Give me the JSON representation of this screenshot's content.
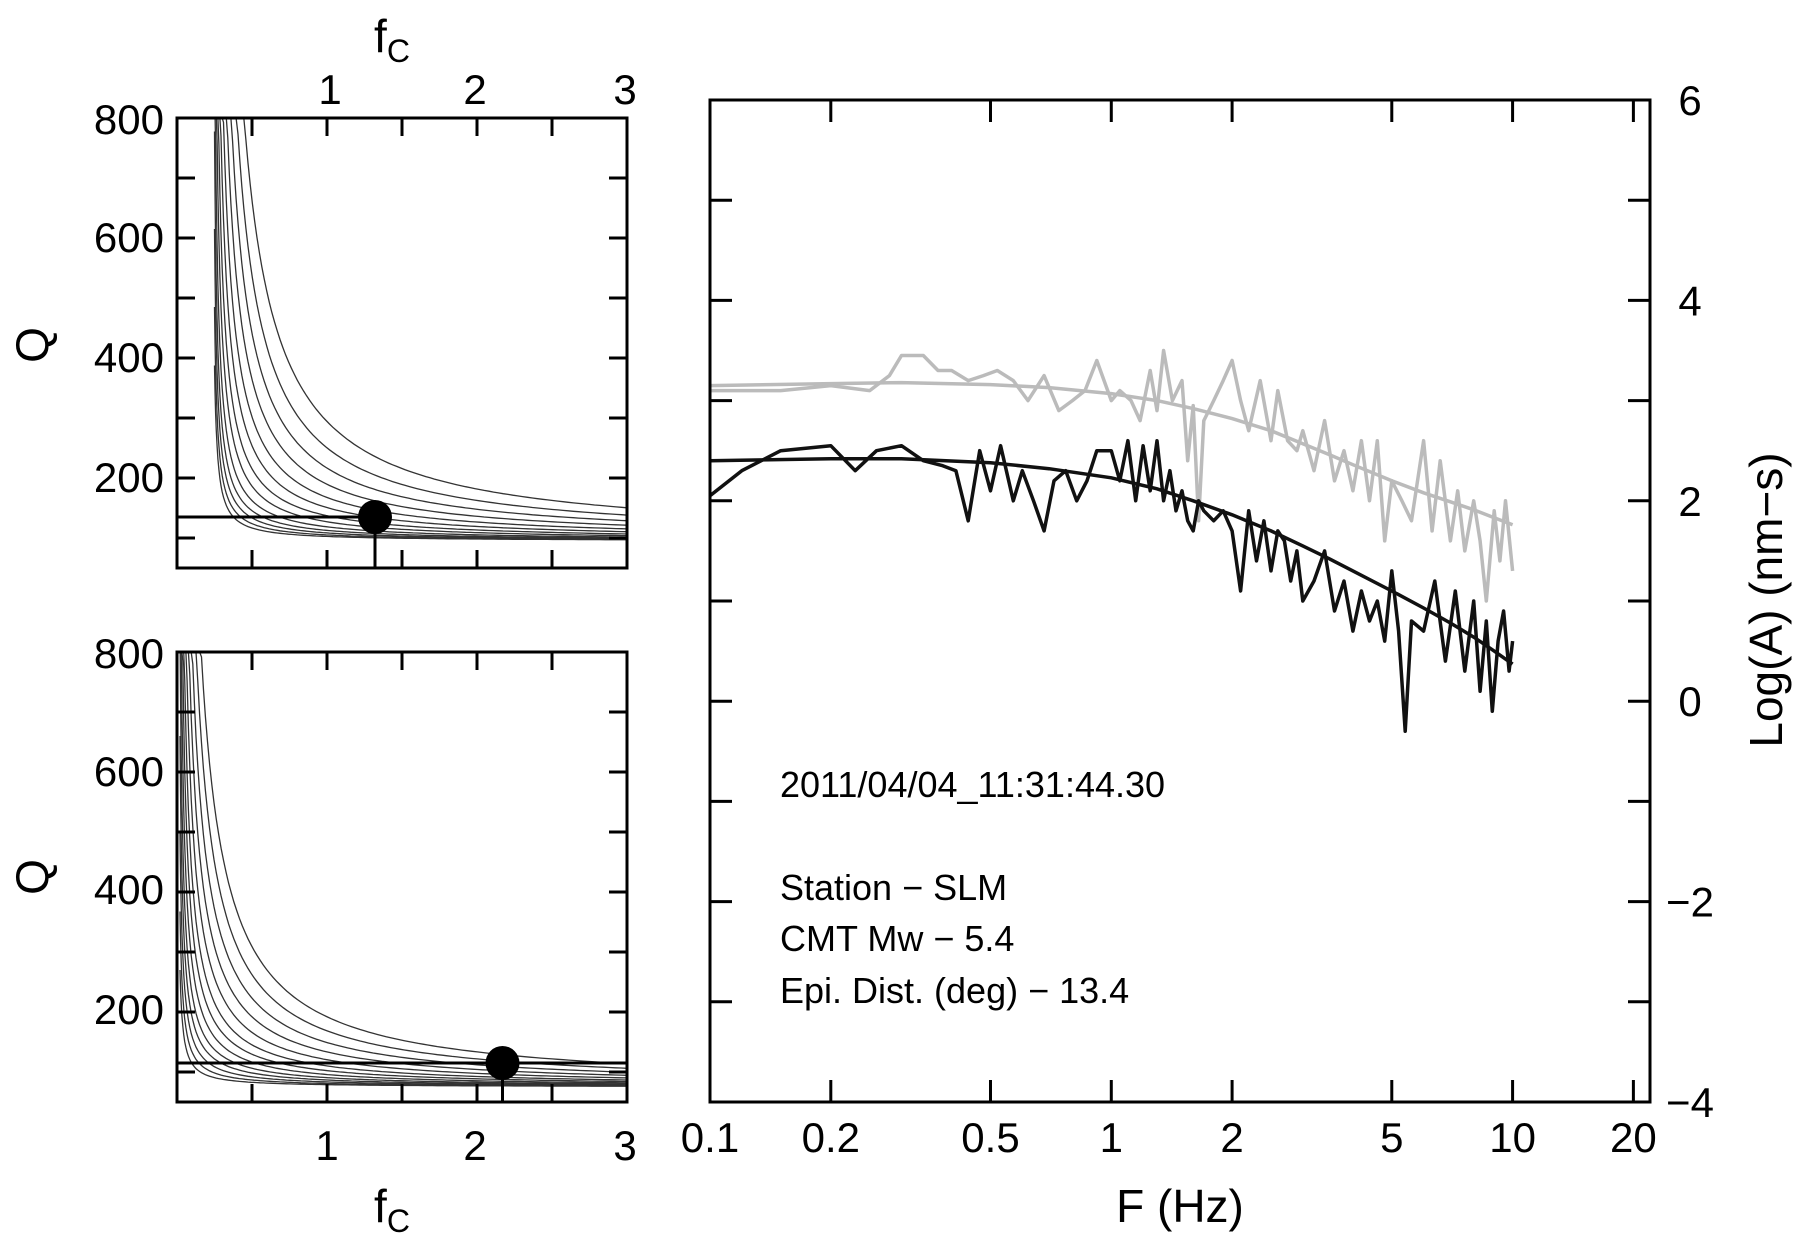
{
  "chart_data": [
    {
      "id": "top-left",
      "type": "contour",
      "x_axis": {
        "label_main": "f",
        "label_sub": "C",
        "position": "top",
        "range": [
          0,
          3
        ],
        "ticks": [
          "1",
          "2",
          "3"
        ]
      },
      "y_axis": {
        "label": "Q",
        "range": [
          50,
          800
        ],
        "ticks": [
          "200",
          "400",
          "600",
          "800"
        ]
      },
      "best_fit": {
        "fc": 1.32,
        "Q": 135
      },
      "contour_scales": [
        0.045,
        0.06,
        0.08,
        0.105,
        0.14,
        0.19,
        0.25,
        0.33,
        0.43,
        0.56,
        0.72,
        0.92,
        1.18
      ]
    },
    {
      "id": "bottom-left",
      "type": "contour",
      "x_axis": {
        "label_main": "f",
        "label_sub": "C",
        "position": "bottom",
        "range": [
          0,
          3
        ],
        "ticks": [
          "1",
          "2",
          "3"
        ]
      },
      "y_axis": {
        "label": "Q",
        "range": [
          50,
          800
        ],
        "ticks": [
          "200",
          "400",
          "600",
          "800"
        ]
      },
      "best_fit": {
        "fc": 2.17,
        "Q": 115
      },
      "contour_scales": [
        0.03,
        0.045,
        0.065,
        0.09,
        0.12,
        0.16,
        0.21,
        0.27,
        0.35,
        0.45,
        0.57,
        0.72,
        0.9
      ]
    },
    {
      "id": "spectrum",
      "type": "line",
      "x_axis": {
        "label": "F  (Hz)",
        "scale": "log",
        "range": [
          0.1,
          22
        ],
        "ticks": [
          0.1,
          0.2,
          0.5,
          1,
          2,
          5,
          10,
          20
        ],
        "tick_labels": [
          "0.1",
          "0.2",
          "0.5",
          "1",
          "2",
          "5",
          "10",
          "20"
        ]
      },
      "y_axis": {
        "label": "Log(A) (nm−s)",
        "position": "right",
        "range": [
          -4,
          6
        ],
        "ticks": [
          6,
          4,
          2,
          0,
          -2,
          -4
        ],
        "tick_labels": [
          "6",
          "4",
          "2",
          "0",
          "−2",
          "−4"
        ]
      },
      "annotations": [
        "2011/04/04_11:31:44.30",
        "Station − SLM",
        "CMT Mw −  5.4",
        "Epi. Dist. (deg) −  13.4"
      ],
      "series": [
        {
          "color": "#bbbbbb",
          "x": [
            0.1,
            0.15,
            0.2,
            0.25,
            0.28,
            0.3,
            0.34,
            0.37,
            0.4,
            0.44,
            0.48,
            0.52,
            0.57,
            0.62,
            0.68,
            0.74,
            0.8,
            0.86,
            0.92,
            1.0,
            1.05,
            1.12,
            1.18,
            1.25,
            1.3,
            1.35,
            1.42,
            1.5,
            1.55,
            1.6,
            1.65,
            1.7,
            1.75,
            1.8,
            1.9,
            2.0,
            2.1,
            2.2,
            2.35,
            2.5,
            2.6,
            2.75,
            2.9,
            3.0,
            3.2,
            3.4,
            3.6,
            3.8,
            4.0,
            4.2,
            4.4,
            4.6,
            4.8,
            5.0,
            5.3,
            5.6,
            6.0,
            6.3,
            6.6,
            7.0,
            7.3,
            7.6,
            8.0,
            8.3,
            8.6,
            9.0,
            9.3,
            9.6,
            10.0
          ],
          "y": [
            3.1,
            3.1,
            3.15,
            3.1,
            3.25,
            3.45,
            3.45,
            3.3,
            3.3,
            3.2,
            3.25,
            3.3,
            3.2,
            3.0,
            3.25,
            2.9,
            3.0,
            3.1,
            3.4,
            3.0,
            3.1,
            3.0,
            2.8,
            3.3,
            2.9,
            3.5,
            3.0,
            3.2,
            2.4,
            2.95,
            1.8,
            2.8,
            2.9,
            3.0,
            3.2,
            3.4,
            3.0,
            2.7,
            3.2,
            2.6,
            3.1,
            2.6,
            2.5,
            2.7,
            2.3,
            2.8,
            2.2,
            2.5,
            2.1,
            2.6,
            2.0,
            2.6,
            1.6,
            2.2,
            2.0,
            1.8,
            2.6,
            1.7,
            2.4,
            1.6,
            2.1,
            1.5,
            2.0,
            1.6,
            1.0,
            1.9,
            1.4,
            2.0,
            1.3
          ]
        },
        {
          "color": "#bbbbbb",
          "x": [
            0.1,
            0.2,
            0.3,
            0.5,
            0.7,
            1.0,
            1.3,
            1.6,
            2.0,
            2.5,
            3.0,
            3.5,
            4.0,
            5.0,
            6.0,
            7.0,
            8.0,
            9.0,
            10.0
          ],
          "y": [
            3.15,
            3.17,
            3.18,
            3.16,
            3.13,
            3.07,
            3.0,
            2.92,
            2.82,
            2.7,
            2.57,
            2.46,
            2.36,
            2.2,
            2.08,
            1.99,
            1.91,
            1.83,
            1.76
          ]
        },
        {
          "color": "#111111",
          "x": [
            0.1,
            0.12,
            0.15,
            0.2,
            0.23,
            0.26,
            0.3,
            0.34,
            0.38,
            0.41,
            0.44,
            0.47,
            0.5,
            0.53,
            0.57,
            0.6,
            0.64,
            0.68,
            0.72,
            0.77,
            0.82,
            0.87,
            0.92,
            1.0,
            1.05,
            1.1,
            1.15,
            1.2,
            1.25,
            1.3,
            1.35,
            1.4,
            1.45,
            1.5,
            1.55,
            1.6,
            1.65,
            1.7,
            1.8,
            1.9,
            2.0,
            2.1,
            2.2,
            2.3,
            2.4,
            2.5,
            2.6,
            2.7,
            2.8,
            2.9,
            3.0,
            3.2,
            3.4,
            3.6,
            3.8,
            4.0,
            4.2,
            4.4,
            4.6,
            4.8,
            5.0,
            5.2,
            5.4,
            5.6,
            6.0,
            6.4,
            6.8,
            7.2,
            7.6,
            8.0,
            8.3,
            8.6,
            8.9,
            9.2,
            9.5,
            9.8,
            10.0
          ],
          "y": [
            2.05,
            2.3,
            2.5,
            2.55,
            2.3,
            2.5,
            2.55,
            2.4,
            2.35,
            2.3,
            1.8,
            2.5,
            2.1,
            2.55,
            2.0,
            2.3,
            2.0,
            1.7,
            2.2,
            2.3,
            2.0,
            2.2,
            2.5,
            2.5,
            2.2,
            2.6,
            2.0,
            2.55,
            2.1,
            2.6,
            2.0,
            2.3,
            1.9,
            2.1,
            1.8,
            1.7,
            2.0,
            1.9,
            1.8,
            1.9,
            1.7,
            1.1,
            1.9,
            1.4,
            1.8,
            1.3,
            1.7,
            1.6,
            1.2,
            1.5,
            1.0,
            1.2,
            1.5,
            0.9,
            1.2,
            0.7,
            1.1,
            0.8,
            1.0,
            0.6,
            1.3,
            0.7,
            -0.3,
            0.8,
            0.7,
            1.2,
            0.4,
            1.1,
            0.3,
            1.0,
            0.1,
            0.8,
            -0.1,
            0.6,
            0.9,
            0.3,
            0.6
          ]
        },
        {
          "color": "#111111",
          "x": [
            0.1,
            0.2,
            0.3,
            0.5,
            0.7,
            1.0,
            1.3,
            1.6,
            2.0,
            2.5,
            3.0,
            3.5,
            4.0,
            5.0,
            6.0,
            7.0,
            8.0,
            9.0,
            10.0
          ],
          "y": [
            2.4,
            2.42,
            2.42,
            2.38,
            2.32,
            2.23,
            2.12,
            2.0,
            1.86,
            1.7,
            1.55,
            1.42,
            1.3,
            1.1,
            0.93,
            0.78,
            0.64,
            0.5,
            0.37
          ]
        }
      ]
    }
  ]
}
